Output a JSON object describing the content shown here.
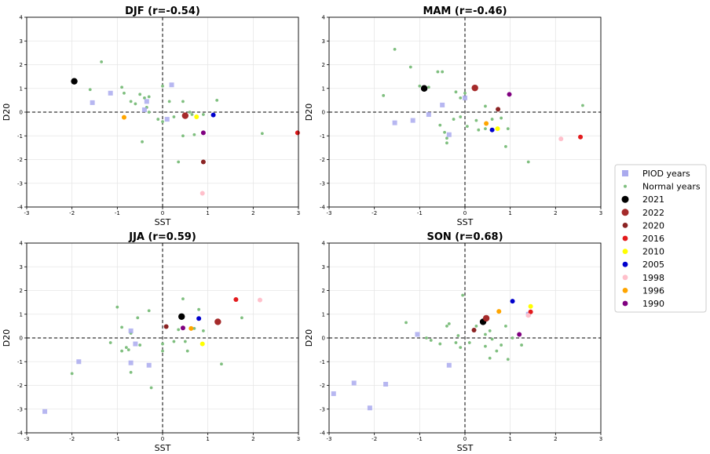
{
  "colors": {
    "piod": "#aaaaee",
    "normal": "#7fbf7f",
    "grid": "#e6e6e6",
    "years": {
      "2021": "#000000",
      "2022": "#a52a2a",
      "2020": "#8b2323",
      "2016": "#e31a1c",
      "2010": "#ffff00",
      "2005": "#0000cd",
      "1998": "#ffc0cb",
      "1996": "#ffa500",
      "1990": "#800080"
    }
  },
  "legend": {
    "placement": "right",
    "entries": [
      {
        "label": "PIOD years",
        "key": "piod",
        "marker": "square"
      },
      {
        "label": "Normal years",
        "key": "normal",
        "marker": "small-dot"
      },
      {
        "label": "2021",
        "key": "2021",
        "marker": "big-dot"
      },
      {
        "label": "2022",
        "key": "2022",
        "marker": "big-dot"
      },
      {
        "label": "2020",
        "key": "2020",
        "marker": "dot"
      },
      {
        "label": "2016",
        "key": "2016",
        "marker": "dot"
      },
      {
        "label": "2010",
        "key": "2010",
        "marker": "dot"
      },
      {
        "label": "2005",
        "key": "2005",
        "marker": "dot"
      },
      {
        "label": "1998",
        "key": "1998",
        "marker": "dot"
      },
      {
        "label": "1996",
        "key": "1996",
        "marker": "dot"
      },
      {
        "label": "1990",
        "key": "1990",
        "marker": "dot"
      }
    ]
  },
  "chart_data": [
    {
      "type": "scatter",
      "title": "DJF (r=-0.54)",
      "xlabel": "SST",
      "ylabel": "D20",
      "xlim": [
        -3,
        3
      ],
      "ylim": [
        -4,
        4
      ],
      "xticks": [
        "-3",
        "-2",
        "-1",
        "0",
        "1",
        "2",
        "3"
      ],
      "yticks": [
        "-4",
        "-3",
        "-2",
        "-1",
        "0",
        "1",
        "2",
        "3",
        "4"
      ],
      "grid": true,
      "piod": [
        [
          -1.55,
          0.4
        ],
        [
          -1.15,
          0.8
        ],
        [
          -0.35,
          0.45
        ],
        [
          -0.4,
          0.1
        ],
        [
          0.1,
          -0.3
        ],
        [
          0.2,
          1.15
        ]
      ],
      "normal": [
        [
          -1.35,
          2.12
        ],
        [
          -1.6,
          0.95
        ],
        [
          -0.9,
          1.05
        ],
        [
          -0.85,
          0.8
        ],
        [
          -0.7,
          0.45
        ],
        [
          -0.6,
          0.35
        ],
        [
          -0.5,
          0.75
        ],
        [
          -0.4,
          0.6
        ],
        [
          -0.35,
          0.2
        ],
        [
          -0.3,
          0.65
        ],
        [
          -0.3,
          0.0
        ],
        [
          -0.45,
          -1.25
        ],
        [
          -0.1,
          -0.3
        ],
        [
          0.0,
          -0.4
        ],
        [
          0.0,
          1.1
        ],
        [
          0.15,
          0.45
        ],
        [
          0.25,
          -0.2
        ],
        [
          0.45,
          0.45
        ],
        [
          0.45,
          -1.0
        ],
        [
          0.35,
          -2.1
        ],
        [
          0.65,
          -0.1
        ],
        [
          0.7,
          -0.95
        ],
        [
          0.9,
          -0.1
        ],
        [
          1.2,
          0.5
        ],
        [
          2.2,
          -0.9
        ],
        [
          0.6,
          0.0
        ]
      ],
      "years": [
        {
          "year": "2021",
          "x": -1.95,
          "y": 1.3
        },
        {
          "year": "2022",
          "x": 0.5,
          "y": -0.15
        },
        {
          "year": "2020",
          "x": 0.9,
          "y": -2.1
        },
        {
          "year": "2016",
          "x": 2.98,
          "y": -0.87
        },
        {
          "year": "2010",
          "x": 0.75,
          "y": -0.2
        },
        {
          "year": "2005",
          "x": 1.12,
          "y": -0.12
        },
        {
          "year": "1998",
          "x": 0.88,
          "y": -3.42
        },
        {
          "year": "1996",
          "x": -0.85,
          "y": -0.22
        },
        {
          "year": "1990",
          "x": 0.9,
          "y": -0.87
        }
      ]
    },
    {
      "type": "scatter",
      "title": "MAM (r=-0.46)",
      "xlabel": "SST",
      "ylabel": "D20",
      "xlim": [
        -3,
        3
      ],
      "ylim": [
        -4,
        4
      ],
      "xticks": [
        "-3",
        "-2",
        "-1",
        "0",
        "1",
        "2",
        "3"
      ],
      "yticks": [
        "-4",
        "-3",
        "-2",
        "-1",
        "0",
        "1",
        "2",
        "3",
        "4"
      ],
      "grid": true,
      "piod": [
        [
          -1.55,
          -0.45
        ],
        [
          -1.15,
          -0.35
        ],
        [
          -0.8,
          -0.1
        ],
        [
          -0.5,
          0.3
        ],
        [
          -0.35,
          -0.95
        ],
        [
          0.0,
          0.6
        ]
      ],
      "normal": [
        [
          -1.55,
          2.65
        ],
        [
          -1.8,
          0.7
        ],
        [
          -1.2,
          1.9
        ],
        [
          -1.0,
          1.1
        ],
        [
          -0.8,
          1.05
        ],
        [
          -0.6,
          1.7
        ],
        [
          -0.5,
          1.7
        ],
        [
          -0.55,
          -0.55
        ],
        [
          -0.45,
          -0.85
        ],
        [
          -0.4,
          -1.1
        ],
        [
          -0.4,
          -1.3
        ],
        [
          -0.25,
          -0.3
        ],
        [
          -0.2,
          0.85
        ],
        [
          -0.1,
          0.6
        ],
        [
          -0.1,
          -0.2
        ],
        [
          0.0,
          0.8
        ],
        [
          0.05,
          -0.6
        ],
        [
          0.25,
          -0.35
        ],
        [
          0.3,
          -0.75
        ],
        [
          0.45,
          0.25
        ],
        [
          0.45,
          -0.7
        ],
        [
          0.6,
          -0.3
        ],
        [
          0.8,
          -0.25
        ],
        [
          0.9,
          -1.45
        ],
        [
          0.95,
          -0.7
        ],
        [
          1.4,
          -2.1
        ],
        [
          2.6,
          0.28
        ]
      ],
      "years": [
        {
          "year": "2021",
          "x": -0.9,
          "y": 1.0
        },
        {
          "year": "2022",
          "x": 0.22,
          "y": 1.02
        },
        {
          "year": "2020",
          "x": 0.73,
          "y": 0.12
        },
        {
          "year": "2016",
          "x": 2.55,
          "y": -1.05
        },
        {
          "year": "2010",
          "x": 0.72,
          "y": -0.7
        },
        {
          "year": "2005",
          "x": 0.6,
          "y": -0.75
        },
        {
          "year": "1998",
          "x": 2.12,
          "y": -1.13
        },
        {
          "year": "1996",
          "x": 0.47,
          "y": -0.48
        },
        {
          "year": "1990",
          "x": 0.98,
          "y": 0.75
        }
      ]
    },
    {
      "type": "scatter",
      "title": "JJA (r=0.59)",
      "xlabel": "SST",
      "ylabel": "D20",
      "xlim": [
        -3,
        3
      ],
      "ylim": [
        -4,
        4
      ],
      "xticks": [
        "-3",
        "-2",
        "-1",
        "0",
        "1",
        "2",
        "3"
      ],
      "yticks": [
        "-4",
        "-3",
        "-2",
        "-1",
        "0",
        "1",
        "2",
        "3",
        "4"
      ],
      "grid": true,
      "piod": [
        [
          -2.6,
          -3.1
        ],
        [
          -1.85,
          -1.0
        ],
        [
          -0.7,
          -1.05
        ],
        [
          -0.7,
          0.3
        ],
        [
          -0.6,
          -0.25
        ],
        [
          -0.3,
          -1.15
        ]
      ],
      "normal": [
        [
          -2.0,
          -1.5
        ],
        [
          -1.15,
          -0.2
        ],
        [
          -1.0,
          1.3
        ],
        [
          -0.9,
          0.45
        ],
        [
          -0.9,
          -0.55
        ],
        [
          -0.8,
          -0.4
        ],
        [
          -0.75,
          -0.5
        ],
        [
          -0.7,
          0.2
        ],
        [
          -0.7,
          -1.45
        ],
        [
          -0.55,
          0.85
        ],
        [
          -0.5,
          -0.3
        ],
        [
          -0.3,
          1.15
        ],
        [
          -0.25,
          -2.1
        ],
        [
          0.0,
          -0.55
        ],
        [
          0.0,
          -0.25
        ],
        [
          0.25,
          -0.15
        ],
        [
          0.35,
          0.35
        ],
        [
          0.45,
          1.65
        ],
        [
          0.5,
          -0.15
        ],
        [
          0.55,
          -0.55
        ],
        [
          0.7,
          0.4
        ],
        [
          0.8,
          1.2
        ],
        [
          0.9,
          0.3
        ],
        [
          1.3,
          -1.1
        ],
        [
          1.75,
          0.85
        ]
      ],
      "years": [
        {
          "year": "2021",
          "x": 0.42,
          "y": 0.9
        },
        {
          "year": "2022",
          "x": 1.22,
          "y": 0.68
        },
        {
          "year": "2020",
          "x": 0.08,
          "y": 0.48
        },
        {
          "year": "2016",
          "x": 1.62,
          "y": 1.62
        },
        {
          "year": "2010",
          "x": 0.88,
          "y": -0.25
        },
        {
          "year": "2005",
          "x": 0.8,
          "y": 0.82
        },
        {
          "year": "1998",
          "x": 2.15,
          "y": 1.6
        },
        {
          "year": "1996",
          "x": 0.63,
          "y": 0.4
        },
        {
          "year": "1990",
          "x": 0.45,
          "y": 0.42
        }
      ]
    },
    {
      "type": "scatter",
      "title": "SON (r=0.68)",
      "xlabel": "SST",
      "ylabel": "D20",
      "xlim": [
        -3,
        3
      ],
      "ylim": [
        -4,
        4
      ],
      "xticks": [
        "-3",
        "-2",
        "-1",
        "0",
        "1",
        "2",
        "3"
      ],
      "yticks": [
        "-4",
        "-3",
        "-2",
        "-1",
        "0",
        "1",
        "2",
        "3",
        "4"
      ],
      "grid": true,
      "piod": [
        [
          -2.9,
          -2.35
        ],
        [
          -2.45,
          -1.9
        ],
        [
          -2.1,
          -2.95
        ],
        [
          -1.75,
          -1.95
        ],
        [
          -1.05,
          0.15
        ],
        [
          -0.35,
          -1.15
        ],
        [
          1.4,
          1.0
        ]
      ],
      "normal": [
        [
          -1.3,
          0.65
        ],
        [
          -0.85,
          0.0
        ],
        [
          -0.75,
          -0.1
        ],
        [
          -0.55,
          -0.25
        ],
        [
          -0.4,
          0.5
        ],
        [
          -0.35,
          0.6
        ],
        [
          -0.2,
          -0.2
        ],
        [
          -0.15,
          0.1
        ],
        [
          -0.05,
          1.8
        ],
        [
          -0.1,
          -0.4
        ],
        [
          0.1,
          -0.2
        ],
        [
          0.25,
          0.5
        ],
        [
          0.45,
          0.15
        ],
        [
          0.45,
          -0.35
        ],
        [
          0.55,
          0.3
        ],
        [
          0.6,
          -0.05
        ],
        [
          0.7,
          -0.55
        ],
        [
          0.8,
          -0.3
        ],
        [
          0.9,
          0.5
        ],
        [
          0.95,
          -0.9
        ],
        [
          1.05,
          0.0
        ],
        [
          1.25,
          -0.3
        ],
        [
          0.55,
          -0.85
        ]
      ],
      "years": [
        {
          "year": "2021",
          "x": 0.4,
          "y": 0.68
        },
        {
          "year": "2022",
          "x": 0.47,
          "y": 0.83
        },
        {
          "year": "2020",
          "x": 0.2,
          "y": 0.33
        },
        {
          "year": "2016",
          "x": 1.45,
          "y": 1.1
        },
        {
          "year": "2010",
          "x": 1.45,
          "y": 1.33
        },
        {
          "year": "2005",
          "x": 1.05,
          "y": 1.55
        },
        {
          "year": "1998",
          "x": 1.4,
          "y": 0.95
        },
        {
          "year": "1996",
          "x": 0.75,
          "y": 1.12
        },
        {
          "year": "1990",
          "x": 1.2,
          "y": 0.15
        }
      ]
    }
  ]
}
